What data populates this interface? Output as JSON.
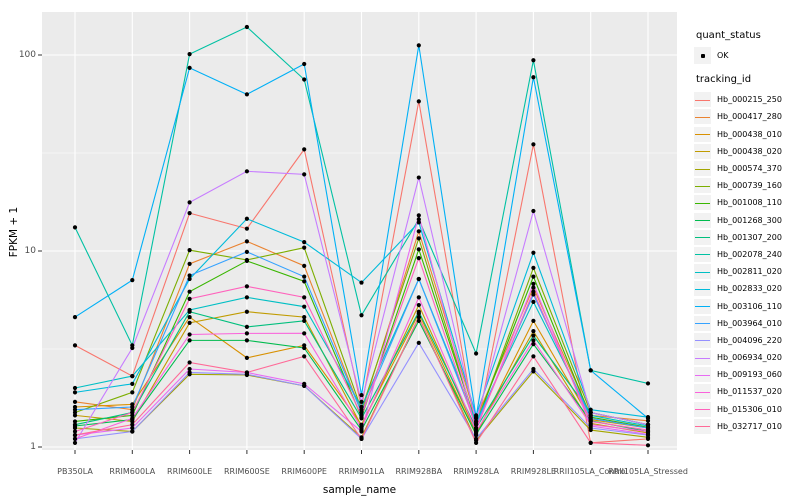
{
  "figure": {
    "x_axis_title": "sample_name",
    "y_axis_title": "FPKM + 1"
  },
  "legend": {
    "quant_status_title": "quant_status",
    "quant_status_items": [
      {
        "label": "OK",
        "marker": "black-point"
      }
    ],
    "tracking_title": "tracking_id"
  },
  "chart_data": {
    "type": "line",
    "title": "",
    "xlabel": "sample_name",
    "ylabel": "FPKM + 1",
    "y_scale": "log10",
    "y_ticks": [
      1,
      10,
      100
    ],
    "y_minor_ticks": [
      3.162,
      31.62
    ],
    "ylim": [
      0.97,
      160
    ],
    "grid": "on",
    "legend_position": "right",
    "panel_bg": "#EBEBEB",
    "grid_color": "#FFFFFF",
    "point_color": "#000000",
    "categories": [
      "PB350LA",
      "RRIM600LA",
      "RRIM600LE",
      "RRIM600SE",
      "RRIM600PE",
      "RRIM901LA",
      "RRIM928BA",
      "RRIM928LA",
      "RRIM928LE",
      "RRII105LA_Control",
      "RRII105LA_Stressed"
    ],
    "series": [
      {
        "name": "Hb_000215_250",
        "color": "#F8766D",
        "values": [
          3.3,
          2.3,
          15.6,
          13,
          33,
          1.6,
          58,
          1.2,
          35,
          1.05,
          1.1
        ]
      },
      {
        "name": "Hb_000417_280",
        "color": "#EA8331",
        "values": [
          1.7,
          1.55,
          8.6,
          11.2,
          8.4,
          1.5,
          12.6,
          1.4,
          6.5,
          1.45,
          1.36
        ]
      },
      {
        "name": "Hb_000438_010",
        "color": "#D89000",
        "values": [
          1.6,
          1.65,
          4.6,
          2.85,
          3.3,
          1.3,
          4.8,
          1.15,
          4.4,
          1.38,
          1.25
        ]
      },
      {
        "name": "Hb_000438_020",
        "color": "#C09B00",
        "values": [
          1.45,
          1.35,
          4.3,
          4.9,
          4.6,
          1.28,
          5.3,
          1.18,
          3.9,
          1.32,
          1.18
        ]
      },
      {
        "name": "Hb_000574_370",
        "color": "#A3A500",
        "values": [
          1.25,
          1.2,
          2.35,
          2.33,
          2.05,
          1.12,
          4.6,
          1.08,
          2.43,
          1.22,
          1.12
        ]
      },
      {
        "name": "Hb_000739_160",
        "color": "#7CAE00",
        "values": [
          1.5,
          1.9,
          10.1,
          9,
          10.4,
          1.55,
          11.6,
          1.3,
          8.2,
          1.5,
          1.3
        ]
      },
      {
        "name": "Hb_001008_110",
        "color": "#39B600",
        "values": [
          1.35,
          1.45,
          6.2,
          8.9,
          7,
          1.42,
          10.2,
          1.32,
          7.4,
          1.42,
          1.26
        ]
      },
      {
        "name": "Hb_001268_300",
        "color": "#00BB4E",
        "values": [
          1.28,
          1.38,
          3.5,
          3.5,
          3.2,
          1.22,
          4.4,
          1.16,
          3.35,
          1.36,
          1.2
        ]
      },
      {
        "name": "Hb_001307_200",
        "color": "#00BF7D",
        "values": [
          1.3,
          1.5,
          4.9,
          4.1,
          4.4,
          1.4,
          4.9,
          1.25,
          3.7,
          1.5,
          1.3
        ]
      },
      {
        "name": "Hb_002078_240",
        "color": "#00C1A3",
        "values": [
          13.2,
          3.3,
          101,
          139,
          75,
          4.7,
          14.5,
          3,
          94,
          2.46,
          2.11
        ]
      },
      {
        "name": "Hb_002811_020",
        "color": "#00BFC4",
        "values": [
          2,
          2.3,
          5,
          5.8,
          5.2,
          1.6,
          7.2,
          1.35,
          5.5,
          1.45,
          1.28
        ]
      },
      {
        "name": "Hb_002833_020",
        "color": "#00BBDA",
        "values": [
          1.9,
          2.1,
          7.2,
          14.6,
          11.1,
          6.9,
          14,
          1.45,
          9.8,
          1.55,
          1.42
        ]
      },
      {
        "name": "Hb_003106_110",
        "color": "#00B0F6",
        "values": [
          4.6,
          7.1,
          86,
          63,
          90,
          1.84,
          112,
          1.42,
          77,
          2.46,
          1.4
        ]
      },
      {
        "name": "Hb_003964_010",
        "color": "#35A2FF",
        "values": [
          1.55,
          1.6,
          7.5,
          9.9,
          7.4,
          1.5,
          7.2,
          1.3,
          6,
          1.4,
          1.25
        ]
      },
      {
        "name": "Hb_004096_220",
        "color": "#9590FF",
        "values": [
          1.1,
          1.2,
          2.4,
          2.35,
          2.05,
          1.1,
          3.4,
          1.1,
          2.5,
          1.25,
          1.15
        ]
      },
      {
        "name": "Hb_006934_020",
        "color": "#C77CFF",
        "values": [
          1.05,
          3.2,
          17.7,
          25.5,
          24.6,
          1.7,
          23.7,
          1.35,
          16,
          1.5,
          1.3
        ]
      },
      {
        "name": "Hb_009193_060",
        "color": "#E76BF3",
        "values": [
          1.15,
          1.25,
          2.5,
          2.4,
          2.1,
          1.2,
          15.2,
          1.22,
          6.8,
          1.28,
          1.16
        ]
      },
      {
        "name": "Hb_011537_020",
        "color": "#FA62DB",
        "values": [
          1.1,
          1.4,
          3.75,
          3.8,
          3.8,
          1.25,
          5.8,
          1.2,
          3.5,
          1.3,
          1.2
        ]
      },
      {
        "name": "Hb_015306_010",
        "color": "#FF62BC",
        "values": [
          1.2,
          1.5,
          5.7,
          6.6,
          5.8,
          1.45,
          9.2,
          1.25,
          6.2,
          1.35,
          1.22
        ]
      },
      {
        "name": "Hb_032717_010",
        "color": "#FF6A98",
        "values": [
          1.15,
          1.3,
          2.7,
          2.4,
          2.9,
          1.1,
          4.6,
          1.05,
          2.9,
          1.05,
          1.02
        ]
      }
    ]
  }
}
